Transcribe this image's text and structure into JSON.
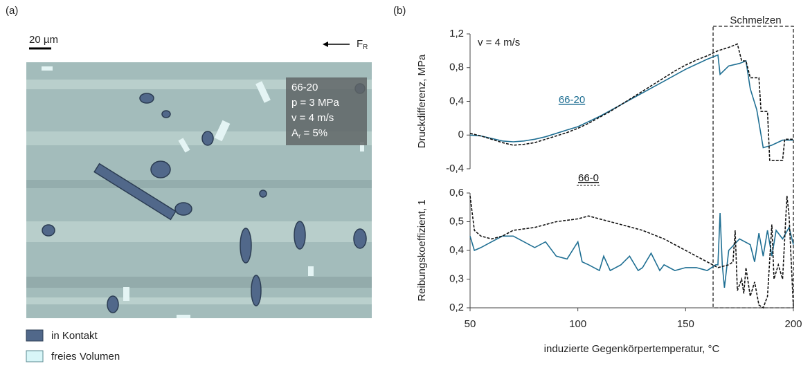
{
  "panel_a": {
    "label": "(a)",
    "scale_bar": "20 µm",
    "force": {
      "symbol": "F",
      "subscript": "R"
    },
    "info": [
      "66-20",
      "p = 3 MPa",
      "v = 4 m/s"
    ],
    "info_area": {
      "symbol": "A",
      "subscript": "r",
      "rest": " = 5%"
    },
    "legend": [
      "in Kontakt",
      "freies Volumen"
    ]
  },
  "panel_b_label": "(b)",
  "chart_data": [
    {
      "type": "line",
      "ylabel": "Druckdifferenz, MPa",
      "annotation": "v = 4 m/s",
      "highlight": {
        "label": "Schmelzen",
        "x": [
          165,
          200
        ]
      },
      "xlim": [
        50,
        200
      ],
      "ylim": [
        -0.4,
        1.2
      ],
      "yticks": [
        {
          "value": -0.4,
          "label": "-0,4"
        },
        0,
        {
          "value": 0.4,
          "label": "0,4"
        },
        {
          "value": 0.8,
          "label": "0,8"
        },
        {
          "value": 1.2,
          "label": "1,2"
        }
      ],
      "series": [
        {
          "name": "66-20",
          "color": "#1f6f93",
          "dash": false,
          "x": [
            50,
            55,
            60,
            65,
            70,
            75,
            80,
            85,
            90,
            95,
            100,
            105,
            110,
            115,
            120,
            125,
            130,
            135,
            140,
            145,
            150,
            155,
            160,
            165,
            166,
            170,
            175,
            178,
            180,
            183,
            186,
            190,
            195,
            200
          ],
          "values": [
            0.0,
            -0.01,
            -0.04,
            -0.07,
            -0.08,
            -0.07,
            -0.05,
            -0.02,
            0.02,
            0.06,
            0.1,
            0.16,
            0.22,
            0.29,
            0.36,
            0.43,
            0.5,
            0.57,
            0.64,
            0.71,
            0.78,
            0.84,
            0.9,
            0.95,
            0.72,
            0.82,
            0.85,
            0.88,
            0.55,
            0.3,
            -0.15,
            -0.12,
            -0.06,
            -0.06
          ]
        },
        {
          "name": "66-0",
          "color": "#111111",
          "dash": true,
          "x": [
            50,
            55,
            60,
            65,
            70,
            75,
            80,
            85,
            90,
            95,
            100,
            105,
            110,
            115,
            120,
            125,
            130,
            135,
            140,
            145,
            150,
            155,
            160,
            165,
            170,
            174,
            176,
            178,
            180,
            184,
            185,
            188,
            189,
            195,
            196,
            200
          ],
          "values": [
            0.02,
            -0.01,
            -0.05,
            -0.09,
            -0.12,
            -0.11,
            -0.09,
            -0.05,
            -0.01,
            0.03,
            0.08,
            0.14,
            0.21,
            0.28,
            0.36,
            0.44,
            0.52,
            0.6,
            0.68,
            0.76,
            0.83,
            0.89,
            0.94,
            1.0,
            1.04,
            1.08,
            0.88,
            0.88,
            0.68,
            0.68,
            0.28,
            0.28,
            -0.3,
            -0.3,
            -0.05,
            -0.05
          ]
        }
      ]
    },
    {
      "type": "line",
      "ylabel": "Reibungskoeffizient, 1",
      "xlabel": "induzierte Gegenkörpertemperatur, °C",
      "xlim": [
        50,
        200
      ],
      "xticks": [
        50,
        100,
        150,
        200
      ],
      "ylim": [
        0.2,
        0.6
      ],
      "yticks": [
        {
          "value": 0.2,
          "label": "0,2"
        },
        {
          "value": 0.3,
          "label": "0,3"
        },
        {
          "value": 0.4,
          "label": "0,4"
        },
        {
          "value": 0.5,
          "label": "0,5"
        },
        {
          "value": 0.6,
          "label": "0,6"
        }
      ],
      "series": [
        {
          "color": "#1f6f93",
          "dash": false,
          "x": [
            50,
            52,
            55,
            60,
            65,
            70,
            75,
            80,
            85,
            90,
            95,
            100,
            102,
            105,
            110,
            112,
            115,
            120,
            124,
            128,
            130,
            134,
            138,
            140,
            145,
            150,
            155,
            160,
            164,
            165,
            166,
            167,
            168,
            170,
            175,
            180,
            182,
            184,
            186,
            188,
            190,
            192,
            195,
            198,
            200
          ],
          "values": [
            0.45,
            0.4,
            0.41,
            0.43,
            0.45,
            0.45,
            0.43,
            0.41,
            0.43,
            0.38,
            0.37,
            0.43,
            0.36,
            0.35,
            0.33,
            0.38,
            0.33,
            0.35,
            0.38,
            0.33,
            0.34,
            0.39,
            0.33,
            0.35,
            0.33,
            0.34,
            0.34,
            0.33,
            0.35,
            0.35,
            0.53,
            0.35,
            0.27,
            0.4,
            0.44,
            0.42,
            0.36,
            0.46,
            0.38,
            0.47,
            0.38,
            0.47,
            0.44,
            0.48,
            0.42
          ]
        },
        {
          "color": "#111111",
          "dash": true,
          "x": [
            50,
            52,
            55,
            60,
            65,
            70,
            80,
            90,
            100,
            105,
            110,
            120,
            130,
            140,
            150,
            160,
            165,
            170,
            172,
            173,
            174,
            176,
            177,
            178,
            180,
            182,
            184,
            186,
            188,
            190,
            191,
            193,
            195,
            197,
            198,
            200
          ],
          "values": [
            0.59,
            0.47,
            0.45,
            0.44,
            0.45,
            0.47,
            0.48,
            0.5,
            0.51,
            0.52,
            0.51,
            0.49,
            0.47,
            0.44,
            0.4,
            0.36,
            0.34,
            0.35,
            0.36,
            0.47,
            0.26,
            0.3,
            0.25,
            0.34,
            0.24,
            0.29,
            0.21,
            0.2,
            0.24,
            0.49,
            0.3,
            0.35,
            0.3,
            0.59,
            0.52,
            0.2
          ]
        }
      ]
    }
  ]
}
